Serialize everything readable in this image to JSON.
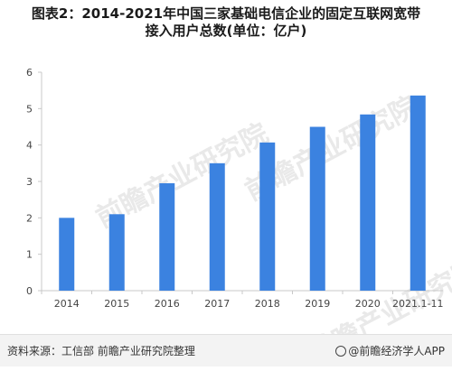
{
  "title_line1": "图表2：2014-2021年中国三家基础电信企业的固定互联网宽带",
  "title_line2": "接入用户总数(单位：亿户)",
  "watermark_text": "前瞻产业研究院",
  "footer": {
    "source": "资料来源：工信部 前瞻产业研究院整理",
    "brand": "@前瞻经济学人APP"
  },
  "chart_data": {
    "type": "bar",
    "categories": [
      "2014",
      "2015",
      "2016",
      "2017",
      "2018",
      "2019",
      "2020",
      "2021.1-11"
    ],
    "values": [
      2.0,
      2.1,
      2.95,
      3.5,
      4.07,
      4.5,
      4.84,
      5.36
    ],
    "ylim": [
      0,
      6
    ],
    "yticks": [
      0,
      1,
      2,
      3,
      4,
      5,
      6
    ],
    "bar_color": "#3b82e0",
    "grid": false,
    "xlabel": "",
    "ylabel": ""
  }
}
